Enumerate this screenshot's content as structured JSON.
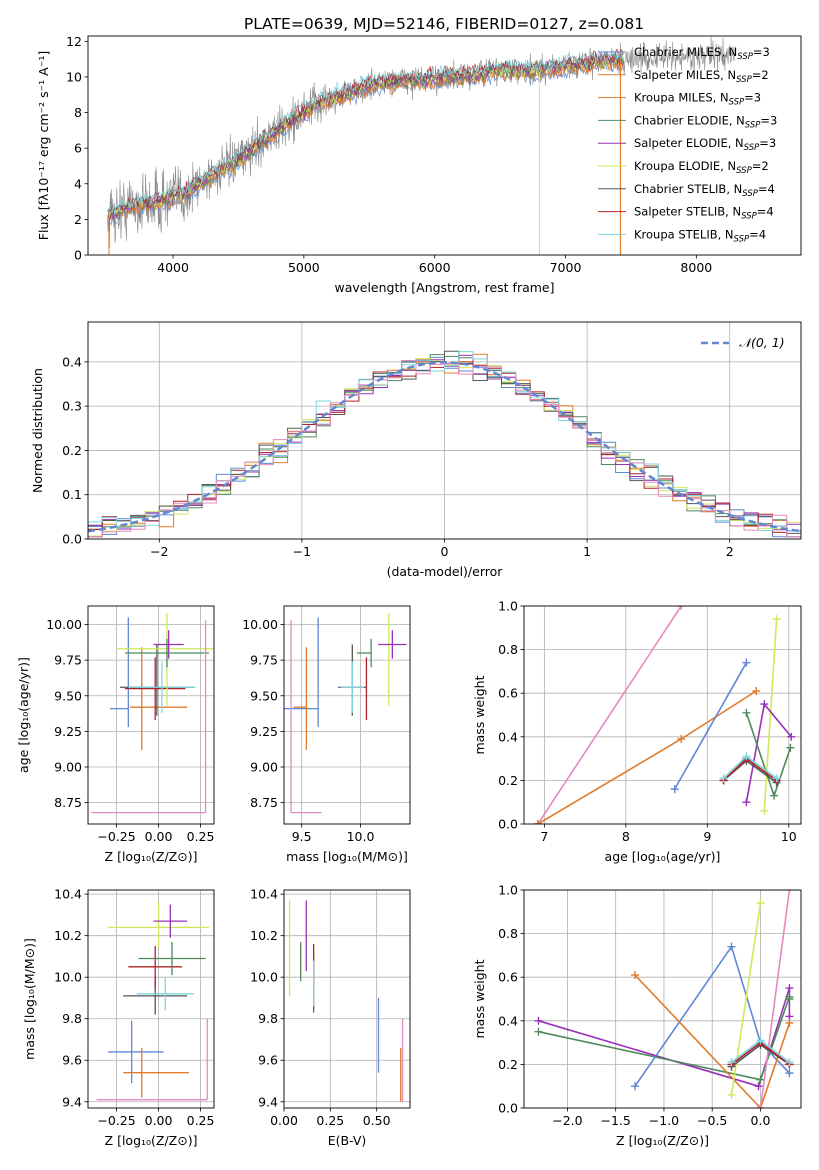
{
  "figure": {
    "title": "PLATE=0639, MJD=52146, FIBERID=0127, z=0.081"
  },
  "colors": {
    "Chabrier MILES": "#5f87d4",
    "Salpeter MILES": "#e07b28",
    "Kroupa MILES": "#e07b28",
    "Chabrier ELODIE": "#4f8a5c",
    "Salpeter ELODIE": "#9b30b8",
    "Kroupa ELODIE": "#cfe85a",
    "Chabrier STELIB": "#555555",
    "Salpeter STELIB": "#b0222a",
    "Kroupa STELIB": "#7fd6e0",
    "pink": "#e58ac0",
    "data": "#888888",
    "gaussian": "#5f87d4"
  },
  "chart_data": [
    {
      "id": "spectrum",
      "type": "line",
      "title": "PLATE=0639, MJD=52146, FIBERID=0127, z=0.081",
      "xlabel": "wavelength [Angstrom, rest frame]",
      "ylabel": "Flux [fλ10⁻¹⁷ erg cm⁻² s⁻¹ A⁻¹]",
      "xlim": [
        3350,
        8800
      ],
      "ylim": [
        0,
        12.3
      ],
      "xticks": [
        4000,
        5000,
        6000,
        7000,
        8000
      ],
      "yticks": [
        0,
        2,
        4,
        6,
        8,
        10,
        12
      ],
      "legend_position": "top-right",
      "legend": [
        {
          "label": "Chabrier MILES, N",
          "sub": "SSP",
          "tail": "=3",
          "color": "#5f87d4"
        },
        {
          "label": "Salpeter MILES, N",
          "sub": "SSP",
          "tail": "=2",
          "color": "#e07b28"
        },
        {
          "label": "Kroupa MILES, N",
          "sub": "SSP",
          "tail": "=3",
          "color": "#e07b28"
        },
        {
          "label": "Chabrier ELODIE, N",
          "sub": "SSP",
          "tail": "=3",
          "color": "#4f8a5c"
        },
        {
          "label": "Salpeter ELODIE, N",
          "sub": "SSP",
          "tail": "=3",
          "color": "#9b30b8"
        },
        {
          "label": "Kroupa ELODIE, N",
          "sub": "SSP",
          "tail": "=2",
          "color": "#cfe85a"
        },
        {
          "label": "Chabrier STELIB, N",
          "sub": "SSP",
          "tail": "=4",
          "color": "#555555"
        },
        {
          "label": "Salpeter STELIB, N",
          "sub": "SSP",
          "tail": "=4",
          "color": "#b0222a"
        },
        {
          "label": "Kroupa STELIB, N",
          "sub": "SSP",
          "tail": "=4",
          "color": "#7fd6e0"
        }
      ],
      "continuum": {
        "x": [
          3500,
          3700,
          3900,
          4100,
          4300,
          4500,
          4700,
          4900,
          5100,
          5300,
          5500,
          5700,
          5900,
          6100,
          6300,
          6500,
          6700,
          6900,
          7100,
          7300,
          7500,
          8500
        ],
        "y": [
          2.2,
          2.8,
          3.0,
          3.5,
          4.5,
          5.3,
          6.5,
          7.5,
          8.5,
          9.0,
          9.5,
          9.8,
          9.8,
          10.0,
          10.1,
          10.4,
          10.3,
          10.5,
          10.7,
          10.9,
          11.0,
          11.3
        ]
      },
      "data_noise": 1.0,
      "data_xmax": 8300,
      "model_xmax": 7450
    },
    {
      "id": "residuals",
      "type": "line",
      "xlabel": "(data-model)/error",
      "ylabel": "Normed distribution",
      "xlim": [
        -2.5,
        2.5
      ],
      "ylim": [
        0,
        0.49
      ],
      "xticks": [
        -2,
        -1,
        0,
        1,
        2
      ],
      "yticks": [
        0.0,
        0.1,
        0.2,
        0.3,
        0.4
      ],
      "grid": true,
      "legend": "𝒩(0, 1)",
      "legend_position": "top-right",
      "series": [
        {
          "name": "N(0,1)",
          "function": "gaussian",
          "mu": 0,
          "sigma": 1
        }
      ]
    },
    {
      "id": "age_vs_Z",
      "type": "scatter",
      "xlabel": "Z [log₁₀(Z/Z⊙)]",
      "ylabel": "age  [log₁₀(age/yr)]",
      "xlim": [
        -0.42,
        0.33
      ],
      "ylim": [
        8.6,
        10.13
      ],
      "xticks": [
        -0.25,
        0.0,
        0.25
      ],
      "xticklabels": [
        "−0.25",
        "0.00",
        "0.25"
      ],
      "yticks": [
        8.75,
        9.0,
        9.25,
        9.5,
        9.75,
        10.0
      ],
      "yticklabels": [
        "8.75",
        "9.00",
        "9.25",
        "9.50",
        "9.75",
        "10.00"
      ],
      "grid": true,
      "points": [
        {
          "x": -0.18,
          "xerr": [
            0.11,
            0.0
          ],
          "y": 9.41,
          "yerr": [
            0.13,
            0.64
          ],
          "color": "#5f87d4"
        },
        {
          "x": -0.1,
          "xerr": [
            0.07,
            0.27
          ],
          "y": 9.42,
          "yerr": [
            0.3,
            0.42
          ],
          "color": "#e07b28"
        },
        {
          "x": -0.01,
          "xerr": [
            0.22,
            0.22
          ],
          "y": 9.56,
          "yerr": [
            0.2,
            0.3
          ],
          "color": "#555555"
        },
        {
          "x": -0.02,
          "xerr": [
            0.18,
            0.18
          ],
          "y": 9.55,
          "yerr": [
            0.22,
            0.22
          ],
          "color": "#b0222a"
        },
        {
          "x": 0.02,
          "xerr": [
            0.2,
            0.2
          ],
          "y": 9.56,
          "yerr": [
            0.18,
            0.18
          ],
          "color": "#7fd6e0"
        },
        {
          "x": 0.05,
          "xerr": [
            0.3,
            0.3
          ],
          "y": 9.83,
          "yerr": [
            0.4,
            0.25
          ],
          "color": "#cfe85a"
        },
        {
          "x": 0.06,
          "xerr": [
            0.09,
            0.09
          ],
          "y": 9.86,
          "yerr": [
            0.1,
            0.1
          ],
          "color": "#9b30b8"
        },
        {
          "x": 0.05,
          "xerr": [
            0.25,
            0.25
          ],
          "y": 9.8,
          "yerr": [
            0.1,
            0.1
          ],
          "color": "#4f8a5c"
        },
        {
          "x": 0.28,
          "xerr": [
            0.68,
            0.0
          ],
          "y": 8.68,
          "yerr": [
            0.0,
            1.35
          ],
          "color": "#e58ac0"
        }
      ]
    },
    {
      "id": "age_vs_mass",
      "type": "scatter",
      "xlabel": "mass [log₁₀(M/M⊙)]",
      "xlim": [
        9.35,
        10.42
      ],
      "ylim": [
        8.6,
        10.13
      ],
      "xticks": [
        9.5,
        10.0
      ],
      "xticklabels": [
        "9.5",
        "10.0"
      ],
      "yticks": [
        8.75,
        9.0,
        9.25,
        9.5,
        9.75,
        10.0
      ],
      "yticklabels": [
        "8.75",
        "9.00",
        "9.25",
        "9.50",
        "9.75",
        "10.00"
      ],
      "grid": true,
      "points": [
        {
          "x": 9.64,
          "xerr": [
            0.29,
            0.0
          ],
          "y": 9.41,
          "yerr": [
            0.13,
            0.64
          ],
          "color": "#5f87d4"
        },
        {
          "x": 9.54,
          "xerr": [
            0.11,
            0.0
          ],
          "y": 9.42,
          "yerr": [
            0.3,
            0.42
          ],
          "color": "#e07b28"
        },
        {
          "x": 9.93,
          "xerr": [
            0.12,
            0.12
          ],
          "y": 9.56,
          "yerr": [
            0.2,
            0.3
          ],
          "color": "#555555"
        },
        {
          "x": 10.05,
          "xerr": [
            0.0,
            0.0
          ],
          "y": 9.55,
          "yerr": [
            0.22,
            0.22
          ],
          "color": "#b0222a"
        },
        {
          "x": 9.93,
          "xerr": [
            0.1,
            0.1
          ],
          "y": 9.56,
          "yerr": [
            0.18,
            0.18
          ],
          "color": "#7fd6e0"
        },
        {
          "x": 10.24,
          "xerr": [
            0.0,
            0.0
          ],
          "y": 9.83,
          "yerr": [
            0.4,
            0.25
          ],
          "color": "#cfe85a"
        },
        {
          "x": 10.27,
          "xerr": [
            0.12,
            0.12
          ],
          "y": 9.86,
          "yerr": [
            0.1,
            0.1
          ],
          "color": "#9b30b8"
        },
        {
          "x": 10.09,
          "xerr": [
            0.12,
            0.0
          ],
          "y": 9.8,
          "yerr": [
            0.1,
            0.1
          ],
          "color": "#4f8a5c"
        },
        {
          "x": 9.41,
          "xerr": [
            0.0,
            0.26
          ],
          "y": 8.68,
          "yerr": [
            0.0,
            1.35
          ],
          "color": "#e58ac0"
        }
      ]
    },
    {
      "id": "massweight_vs_age",
      "type": "line",
      "xlabel": "age  [log₁₀(age/yr)]",
      "ylabel": "mass weight",
      "xlim": [
        6.75,
        10.15
      ],
      "ylim": [
        0,
        1
      ],
      "xticks": [
        7,
        8,
        9,
        10
      ],
      "yticks": [
        0.0,
        0.2,
        0.4,
        0.6,
        0.8,
        1.0
      ],
      "grid": true,
      "series": [
        {
          "color": "#e58ac0",
          "x": [
            6.92,
            8.68
          ],
          "y": [
            0.0,
            1.0
          ]
        },
        {
          "color": "#e07b28",
          "x": [
            6.92,
            8.68,
            9.6
          ],
          "y": [
            0.0,
            0.39,
            0.61
          ]
        },
        {
          "color": "#5f87d4",
          "x": [
            8.6,
            9.48
          ],
          "y": [
            0.16,
            0.74
          ]
        },
        {
          "color": "#cfe85a",
          "x": [
            9.7,
            9.85
          ],
          "y": [
            0.06,
            0.94
          ]
        },
        {
          "color": "#9b30b8",
          "x": [
            9.48,
            9.7,
            10.03
          ],
          "y": [
            0.1,
            0.55,
            0.4
          ]
        },
        {
          "color": "#4f8a5c",
          "x": [
            9.48,
            9.82,
            10.02
          ],
          "y": [
            0.51,
            0.13,
            0.35
          ]
        },
        {
          "color": "#555555",
          "x": [
            9.2,
            9.48,
            9.85
          ],
          "y": [
            0.2,
            0.29,
            0.19
          ]
        },
        {
          "color": "#b0222a",
          "x": [
            9.2,
            9.48,
            9.85
          ],
          "y": [
            0.2,
            0.3,
            0.2
          ]
        },
        {
          "color": "#7fd6e0",
          "x": [
            9.2,
            9.48,
            9.85
          ],
          "y": [
            0.21,
            0.31,
            0.21
          ]
        }
      ]
    },
    {
      "id": "mass_vs_Z",
      "type": "scatter",
      "xlabel": "Z [log₁₀(Z/Z⊙)]",
      "ylabel": "mass [log₁₀(M/M⊙)]",
      "xlim": [
        -0.42,
        0.33
      ],
      "ylim": [
        9.37,
        10.42
      ],
      "xticks": [
        -0.25,
        0.0,
        0.25
      ],
      "xticklabels": [
        "−0.25",
        "0.00",
        "0.25"
      ],
      "yticks": [
        9.4,
        9.6,
        9.8,
        10.0,
        10.2,
        10.4
      ],
      "yticklabels": [
        "9.4",
        "9.6",
        "9.8",
        "10.0",
        "10.2",
        "10.4"
      ],
      "grid": true,
      "points": [
        {
          "x": -0.16,
          "xerr": [
            0.14,
            0.19
          ],
          "y": 9.64,
          "yerr": [
            0.15,
            0.15
          ],
          "color": "#5f87d4"
        },
        {
          "x": -0.1,
          "xerr": [
            0.11,
            0.28
          ],
          "y": 9.54,
          "yerr": [
            0.12,
            0.12
          ],
          "color": "#e07b28"
        },
        {
          "x": -0.02,
          "xerr": [
            0.19,
            0.19
          ],
          "y": 9.91,
          "yerr": [
            0.09,
            0.1
          ],
          "color": "#555555"
        },
        {
          "x": -0.02,
          "xerr": [
            0.16,
            0.16
          ],
          "y": 10.05,
          "yerr": [
            0.1,
            0.1
          ],
          "color": "#b0222a"
        },
        {
          "x": 0.04,
          "xerr": [
            0.17,
            0.17
          ],
          "y": 9.92,
          "yerr": [
            0.08,
            0.08
          ],
          "color": "#7fd6e0"
        },
        {
          "x": 0.0,
          "xerr": [
            0.3,
            0.3
          ],
          "y": 10.24,
          "yerr": [
            0.1,
            0.12
          ],
          "color": "#cfe85a"
        },
        {
          "x": 0.07,
          "xerr": [
            0.1,
            0.1
          ],
          "y": 10.27,
          "yerr": [
            0.08,
            0.08
          ],
          "color": "#9b30b8"
        },
        {
          "x": 0.08,
          "xerr": [
            0.2,
            0.2
          ],
          "y": 10.09,
          "yerr": [
            0.08,
            0.08
          ],
          "color": "#4f8a5c"
        },
        {
          "x": 0.29,
          "xerr": [
            0.66,
            0.0
          ],
          "y": 9.41,
          "yerr": [
            0.0,
            0.39
          ],
          "color": "#e58ac0"
        }
      ]
    },
    {
      "id": "mass_vs_EBV",
      "type": "scatter",
      "xlabel": "E(B-V)",
      "xlim": [
        0.0,
        0.68
      ],
      "ylim": [
        9.37,
        10.42
      ],
      "xticks": [
        0.0,
        0.25,
        0.5
      ],
      "xticklabels": [
        "0.00",
        "0.25",
        "0.50"
      ],
      "yticks": [
        9.4,
        9.6,
        9.8,
        10.0,
        10.2,
        10.4
      ],
      "yticklabels": [
        "9.4",
        "9.6",
        "9.8",
        "10.0",
        "10.2",
        "10.4"
      ],
      "grid": true,
      "points": [
        {
          "x": 0.51,
          "y": 9.72,
          "yerr": [
            0.18,
            0.18
          ],
          "color": "#5f87d4"
        },
        {
          "x": 0.63,
          "y": 9.53,
          "yerr": [
            0.13,
            0.13
          ],
          "color": "#e07b28"
        },
        {
          "x": 0.09,
          "y": 10.07,
          "yerr": [
            0.09,
            0.1
          ],
          "color": "#4f8a5c"
        },
        {
          "x": 0.12,
          "y": 10.2,
          "yerr": [
            0.17,
            0.17
          ],
          "color": "#9b30b8"
        },
        {
          "x": 0.03,
          "y": 10.14,
          "yerr": [
            0.23,
            0.23
          ],
          "color": "#cfe85a"
        },
        {
          "x": 0.16,
          "y": 9.97,
          "yerr": [
            0.14,
            0.14
          ],
          "color": "#555555"
        },
        {
          "x": 0.16,
          "y": 10.06,
          "yerr": [
            0.1,
            0.1
          ],
          "color": "#b0222a"
        },
        {
          "x": 0.16,
          "y": 9.97,
          "yerr": [
            0.11,
            0.11
          ],
          "color": "#7fd6e0"
        },
        {
          "x": 0.64,
          "y": 9.6,
          "yerr": [
            0.2,
            0.2
          ],
          "color": "#e58ac0"
        }
      ]
    },
    {
      "id": "massweight_vs_Z",
      "type": "line",
      "xlabel": "Z [log₁₀(Z/Z⊙)]",
      "ylabel": "mass weight",
      "xlim": [
        -2.45,
        0.42
      ],
      "ylim": [
        0,
        1
      ],
      "xticks": [
        -2.0,
        -1.5,
        -1.0,
        -0.5,
        0.0
      ],
      "xticklabels": [
        "−2.0",
        "−1.5",
        "−1.0",
        "−0.5",
        "0.0"
      ],
      "yticks": [
        0.0,
        0.2,
        0.4,
        0.6,
        0.8,
        1.0
      ],
      "grid": true,
      "series": [
        {
          "color": "#9b30b8",
          "x": [
            -2.3,
            -0.02,
            0.3,
            0.3
          ],
          "y": [
            0.4,
            0.1,
            0.55,
            0.42
          ]
        },
        {
          "color": "#4f8a5c",
          "x": [
            -2.3,
            0.0,
            0.3,
            0.3
          ],
          "y": [
            0.35,
            0.13,
            0.51,
            0.5
          ]
        },
        {
          "color": "#5f87d4",
          "x": [
            -1.3,
            -0.3,
            0.0,
            0.3
          ],
          "y": [
            0.1,
            0.74,
            0.3,
            0.16
          ]
        },
        {
          "color": "#e07b28",
          "x": [
            -1.3,
            0.0,
            0.3
          ],
          "y": [
            0.61,
            0.0,
            0.39
          ]
        },
        {
          "color": "#cfe85a",
          "x": [
            -0.3,
            0.0
          ],
          "y": [
            0.06,
            0.94
          ]
        },
        {
          "color": "#e58ac0",
          "x": [
            0.0,
            0.3
          ],
          "y": [
            0.0,
            1.0
          ]
        },
        {
          "color": "#555555",
          "x": [
            -0.3,
            0.0,
            0.3
          ],
          "y": [
            0.19,
            0.29,
            0.2
          ]
        },
        {
          "color": "#b0222a",
          "x": [
            -0.3,
            0.0,
            0.3
          ],
          "y": [
            0.2,
            0.3,
            0.2
          ]
        },
        {
          "color": "#7fd6e0",
          "x": [
            -0.3,
            0.0,
            0.3
          ],
          "y": [
            0.21,
            0.31,
            0.21
          ]
        }
      ]
    }
  ]
}
